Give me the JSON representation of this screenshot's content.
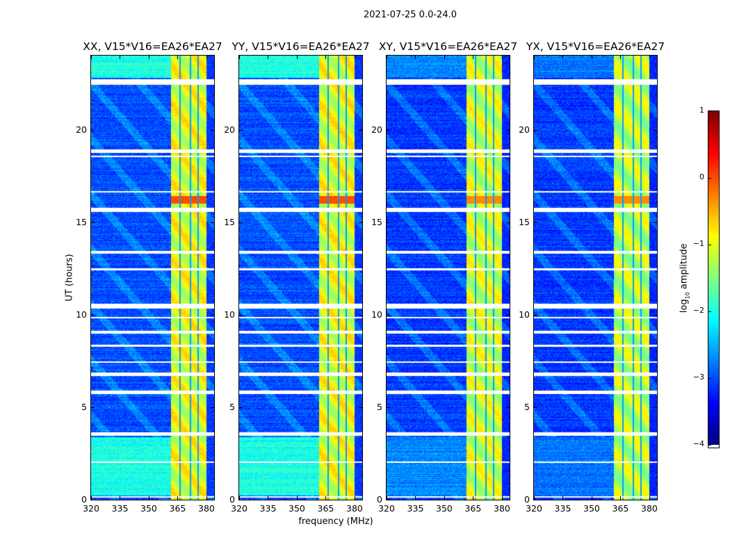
{
  "chart_data": {
    "type": "heatmap",
    "title": "2021-07-25 0.0-24.0",
    "xlabel": "frequency (MHz)",
    "ylabel": "UT (hours)",
    "xlim": [
      320,
      384
    ],
    "ylim": [
      0,
      24
    ],
    "xticks": [
      320,
      335,
      350,
      365,
      380
    ],
    "yticks": [
      0,
      5,
      10,
      15,
      20
    ],
    "colorbar": {
      "label_prefix": "log",
      "label_sub": "10",
      "label_suffix": " amplitude",
      "range": [
        -4,
        1
      ],
      "ticks": [
        1,
        0,
        -1,
        -2,
        -3,
        -4
      ],
      "tick_labels": [
        "1",
        "0",
        "−1",
        "−2",
        "−3",
        "−4"
      ],
      "colormap": "jet"
    },
    "rfi_band_mhz": [
      361.5,
      380
    ],
    "rfi_band_dark_channels_mhz": [
      366,
      371.5,
      375.5
    ],
    "flagged_hours": [
      [
        22.45,
        22.75
      ],
      [
        18.75,
        18.95
      ],
      [
        18.55,
        18.62
      ],
      [
        16.62,
        16.7
      ],
      [
        15.58,
        15.8
      ],
      [
        13.3,
        13.45
      ],
      [
        12.42,
        12.52
      ],
      [
        10.35,
        10.6
      ],
      [
        9.82,
        9.9
      ],
      [
        9.0,
        9.15
      ],
      [
        8.3,
        8.38
      ],
      [
        7.42,
        7.5
      ],
      [
        6.72,
        6.88
      ],
      [
        5.72,
        5.9
      ],
      [
        3.48,
        3.68
      ],
      [
        2.02,
        2.08
      ],
      [
        0.15,
        0.22
      ]
    ],
    "panels": [
      {
        "title": "XX, V15*V16=EA26*EA27",
        "background_log_amp": -3.0,
        "high_segments_log_amp": -2.0,
        "band_log_amp": -1.0,
        "rfi_peak_log_amp": 0.0
      },
      {
        "title": "YY, V15*V16=EA26*EA27",
        "background_log_amp": -3.0,
        "high_segments_log_amp": -2.0,
        "band_log_amp": -1.0,
        "rfi_peak_log_amp": 0.0
      },
      {
        "title": "XY, V15*V16=EA26*EA27",
        "background_log_amp": -3.1,
        "high_segments_log_amp": -2.7,
        "band_log_amp": -1.1,
        "rfi_peak_log_amp": -0.3
      },
      {
        "title": "YX, V15*V16=EA26*EA27",
        "background_log_amp": -3.1,
        "high_segments_log_amp": -2.8,
        "band_log_amp": -1.2,
        "rfi_peak_log_amp": -0.3
      }
    ]
  }
}
